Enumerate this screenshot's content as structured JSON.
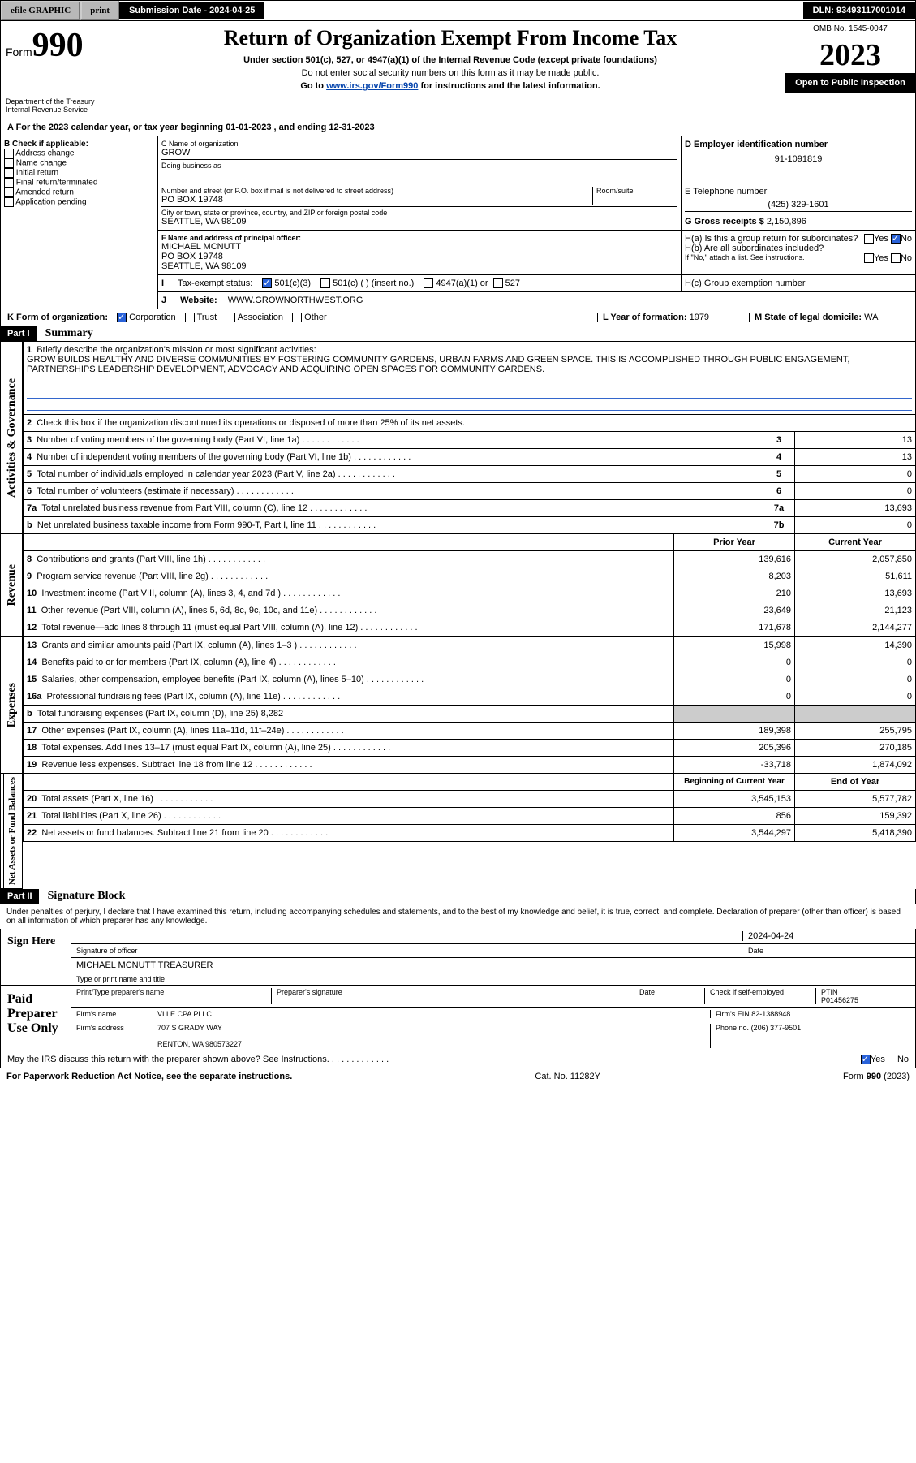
{
  "topbar": {
    "efile": "efile GRAPHIC",
    "print": "print",
    "subdate_label": "Submission Date - 2024-04-25",
    "dln_label": "DLN: 93493117001014"
  },
  "header": {
    "form_prefix": "Form",
    "form_num": "990",
    "title": "Return of Organization Exempt From Income Tax",
    "sub1": "Under section 501(c), 527, or 4947(a)(1) of the Internal Revenue Code (except private foundations)",
    "sub2": "Do not enter social security numbers on this form as it may be made public.",
    "sub3_pre": "Go to ",
    "sub3_link": "www.irs.gov/Form990",
    "sub3_post": " for instructions and the latest information.",
    "dept": "Department of the Treasury",
    "irs": "Internal Revenue Service",
    "omb": "OMB No. 1545-0047",
    "year": "2023",
    "inspection": "Open to Public Inspection"
  },
  "line_a": "A For the 2023 calendar year, or tax year beginning 01-01-2023   , and ending 12-31-2023",
  "box_b": {
    "label": "B Check if applicable:",
    "opts": [
      "Address change",
      "Name change",
      "Initial return",
      "Final return/terminated",
      "Amended return",
      "Application pending"
    ]
  },
  "box_c": {
    "name_label": "C Name of organization",
    "name": "GROW",
    "dba": "Doing business as",
    "addr_label": "Number and street (or P.O. box if mail is not delivered to street address)",
    "room": "Room/suite",
    "addr": "PO BOX 19748",
    "city_label": "City or town, state or province, country, and ZIP or foreign postal code",
    "city": "SEATTLE, WA  98109"
  },
  "box_d": {
    "label": "D Employer identification number",
    "val": "91-1091819"
  },
  "box_e": {
    "label": "E Telephone number",
    "val": "(425) 329-1601"
  },
  "box_g": {
    "label": "G Gross receipts $",
    "val": "2,150,896"
  },
  "box_f": {
    "label": "F  Name and address of principal officer:",
    "name": "MICHAEL MCNUTT",
    "addr1": "PO BOX 19748",
    "addr2": "SEATTLE, WA  98109"
  },
  "box_h": {
    "a": "H(a)  Is this a group return for subordinates?",
    "b": "H(b)  Are all subordinates included?",
    "b2": "If \"No,\" attach a list. See instructions.",
    "c": "H(c)  Group exemption number",
    "yes": "Yes",
    "no": "No"
  },
  "box_i": {
    "label": "Tax-exempt status:",
    "c1": "501(c)(3)",
    "c2": "501(c) (  ) (insert no.)",
    "c3": "4947(a)(1) or",
    "c4": "527"
  },
  "box_j": {
    "label": "Website:",
    "val": "WWW.GROWNORTHWEST.ORG"
  },
  "box_k": {
    "label": "K Form of organization:",
    "c1": "Corporation",
    "c2": "Trust",
    "c3": "Association",
    "c4": "Other"
  },
  "box_l": {
    "label": "L Year of formation:",
    "val": "1979"
  },
  "box_m": {
    "label": "M State of legal domicile:",
    "val": "WA"
  },
  "part1": {
    "label": "Part I",
    "title": "Summary",
    "q1": "Briefly describe the organization's mission or most significant activities:",
    "mission": "GROW BUILDS HEALTHY AND DIVERSE COMMUNITIES BY FOSTERING COMMUNITY GARDENS, URBAN FARMS AND GREEN SPACE. THIS IS ACCOMPLISHED THROUGH PUBLIC ENGAGEMENT, PARTNERSHIPS LEADERSHIP DEVELOPMENT, ADVOCACY AND ACQUIRING OPEN SPACES FOR COMMUNITY GARDENS.",
    "q2": "Check this box      if the organization discontinued its operations or disposed of more than 25% of its net assets.",
    "lines_gov": [
      {
        "n": "3",
        "t": "Number of voting members of the governing body (Part VI, line 1a)",
        "b": "3",
        "v": "13"
      },
      {
        "n": "4",
        "t": "Number of independent voting members of the governing body (Part VI, line 1b)",
        "b": "4",
        "v": "13"
      },
      {
        "n": "5",
        "t": "Total number of individuals employed in calendar year 2023 (Part V, line 2a)",
        "b": "5",
        "v": "0"
      },
      {
        "n": "6",
        "t": "Total number of volunteers (estimate if necessary)",
        "b": "6",
        "v": "0"
      },
      {
        "n": "7a",
        "t": "Total unrelated business revenue from Part VIII, column (C), line 12",
        "b": "7a",
        "v": "13,693"
      },
      {
        "n": "b",
        "t": "Net unrelated business taxable income from Form 990-T, Part I, line 11",
        "b": "7b",
        "v": "0"
      }
    ],
    "prior": "Prior Year",
    "current": "Current Year",
    "lines_rev": [
      {
        "n": "8",
        "t": "Contributions and grants (Part VIII, line 1h)",
        "p": "139,616",
        "c": "2,057,850"
      },
      {
        "n": "9",
        "t": "Program service revenue (Part VIII, line 2g)",
        "p": "8,203",
        "c": "51,611"
      },
      {
        "n": "10",
        "t": "Investment income (Part VIII, column (A), lines 3, 4, and 7d )",
        "p": "210",
        "c": "13,693"
      },
      {
        "n": "11",
        "t": "Other revenue (Part VIII, column (A), lines 5, 6d, 8c, 9c, 10c, and 11e)",
        "p": "23,649",
        "c": "21,123"
      },
      {
        "n": "12",
        "t": "Total revenue—add lines 8 through 11 (must equal Part VIII, column (A), line 12)",
        "p": "171,678",
        "c": "2,144,277"
      }
    ],
    "lines_exp": [
      {
        "n": "13",
        "t": "Grants and similar amounts paid (Part IX, column (A), lines 1–3 )",
        "p": "15,998",
        "c": "14,390"
      },
      {
        "n": "14",
        "t": "Benefits paid to or for members (Part IX, column (A), line 4)",
        "p": "0",
        "c": "0"
      },
      {
        "n": "15",
        "t": "Salaries, other compensation, employee benefits (Part IX, column (A), lines 5–10)",
        "p": "0",
        "c": "0"
      },
      {
        "n": "16a",
        "t": "Professional fundraising fees (Part IX, column (A), line 11e)",
        "p": "0",
        "c": "0"
      },
      {
        "n": "b",
        "t": "Total fundraising expenses (Part IX, column (D), line 25) 8,282",
        "p": "",
        "c": ""
      },
      {
        "n": "17",
        "t": "Other expenses (Part IX, column (A), lines 11a–11d, 11f–24e)",
        "p": "189,398",
        "c": "255,795"
      },
      {
        "n": "18",
        "t": "Total expenses. Add lines 13–17 (must equal Part IX, column (A), line 25)",
        "p": "205,396",
        "c": "270,185"
      },
      {
        "n": "19",
        "t": "Revenue less expenses. Subtract line 18 from line 12",
        "p": "-33,718",
        "c": "1,874,092"
      }
    ],
    "begin": "Beginning of Current Year",
    "end": "End of Year",
    "lines_net": [
      {
        "n": "20",
        "t": "Total assets (Part X, line 16)",
        "p": "3,545,153",
        "c": "5,577,782"
      },
      {
        "n": "21",
        "t": "Total liabilities (Part X, line 26)",
        "p": "856",
        "c": "159,392"
      },
      {
        "n": "22",
        "t": "Net assets or fund balances. Subtract line 21 from line 20",
        "p": "3,544,297",
        "c": "5,418,390"
      }
    ],
    "side_gov": "Activities & Governance",
    "side_rev": "Revenue",
    "side_exp": "Expenses",
    "side_net": "Net Assets or Fund Balances"
  },
  "part2": {
    "label": "Part II",
    "title": "Signature Block",
    "decl": "Under penalties of perjury, I declare that I have examined this return, including accompanying schedules and statements, and to the best of my knowledge and belief, it is true, correct, and complete. Declaration of preparer (other than officer) is based on all information of which preparer has any knowledge.",
    "sign": "Sign Here",
    "sig_off": "Signature of officer",
    "date": "Date",
    "date_val": "2024-04-24",
    "officer": "MICHAEL MCNUTT  TREASURER",
    "type": "Type or print name and title",
    "paid": "Paid Preparer Use Only",
    "prep_name": "Print/Type preparer's name",
    "prep_sig": "Preparer's signature",
    "self": "Check        if self-employed",
    "ptin": "PTIN",
    "ptin_v": "P01456275",
    "firm": "Firm's name",
    "firm_v": "VI LE CPA PLLC",
    "ein": "Firm's EIN",
    "ein_v": "82-1388948",
    "faddr": "Firm's address",
    "faddr_v": "707 S GRADY WAY",
    "faddr_v2": "RENTON, WA  980573227",
    "phone": "Phone no.",
    "phone_v": "(206) 377-9501",
    "discuss": "May the IRS discuss this return with the preparer shown above? See Instructions."
  },
  "footer": {
    "pra": "For Paperwork Reduction Act Notice, see the separate instructions.",
    "cat": "Cat. No. 11282Y",
    "form": "Form 990 (2023)"
  }
}
